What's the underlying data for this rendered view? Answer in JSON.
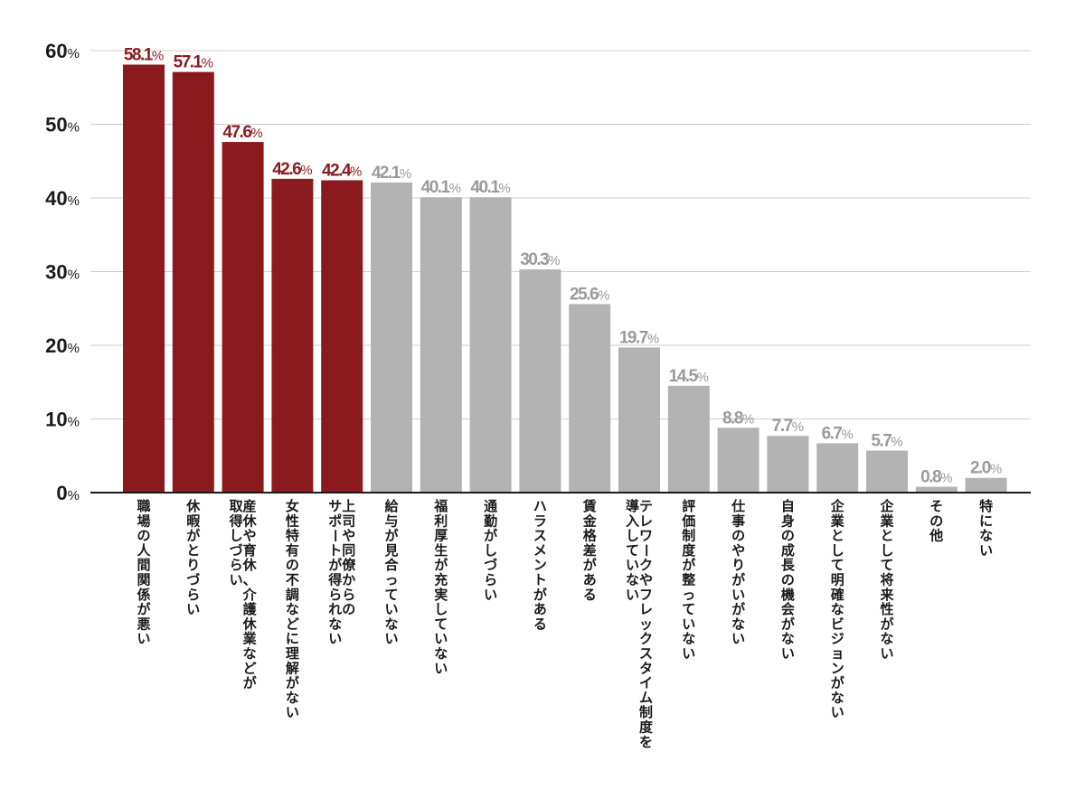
{
  "chart_data": {
    "type": "bar",
    "title": "",
    "xlabel": "",
    "ylabel": "",
    "ylim": [
      0,
      60
    ],
    "y_ticks": [
      "0%",
      "10%",
      "20%",
      "30%",
      "40%",
      "50%",
      "60%"
    ],
    "y_tick_values": [
      0,
      10,
      20,
      30,
      40,
      50,
      60
    ],
    "grid": true,
    "legend": "none",
    "colors": {
      "highlight": "#8b1a1f",
      "normal": "#b3b3b3",
      "axis": "#1a1a1a",
      "grid": "#cfcfcf"
    },
    "highlight_count": 5,
    "categories": [
      "職場の人間関係が悪い",
      "休暇がとりづらい",
      "産休や育休、介護休業などが取得しづらい",
      "女性特有の不調などに理解がない",
      "上司や同僚からのサポートが得られない",
      "給与が見合っていない",
      "福利厚生が充実していない",
      "通勤がしづらい",
      "ハラスメントがある",
      "賃金格差がある",
      "テレワークやフレックスタイム制度を導入していない",
      "評価制度が整っていない",
      "仕事のやりがいがない",
      "自身の成長の機会がない",
      "企業として明確なビジョンがない",
      "企業として将来性がない",
      "その他",
      "特にない"
    ],
    "category_lines": [
      [
        "職場の人間関係が悪い"
      ],
      [
        "休暇がとりづらい"
      ],
      [
        "産休や育休、介護休業などが",
        "取得しづらい"
      ],
      [
        "女性特有の不調などに理解がない"
      ],
      [
        "上司や同僚からの",
        "サポートが得られない"
      ],
      [
        "給与が見合っていない"
      ],
      [
        "福利厚生が充実していない"
      ],
      [
        "通勤がしづらい"
      ],
      [
        "ハラスメントがある"
      ],
      [
        "賃金格差がある"
      ],
      [
        "テレワークやフレックスタイム制度を",
        "導入していない"
      ],
      [
        "評価制度が整っていない"
      ],
      [
        "仕事のやりがいがない"
      ],
      [
        "自身の成長の機会がない"
      ],
      [
        "企業として明確なビジョンがない"
      ],
      [
        "企業として将来性がない"
      ],
      [
        "その他"
      ],
      [
        "特にない"
      ]
    ],
    "values": [
      58.1,
      57.1,
      47.6,
      42.6,
      42.4,
      42.1,
      40.1,
      40.1,
      30.3,
      25.6,
      19.7,
      14.5,
      8.8,
      7.7,
      6.7,
      5.7,
      0.8,
      2.0
    ],
    "value_labels": [
      "58.1",
      "57.1",
      "47.6",
      "42.6",
      "42.4",
      "42.1",
      "40.1",
      "40.1",
      "30.3",
      "25.6",
      "19.7",
      "14.5",
      "8.8",
      "7.7",
      "6.7",
      "5.7",
      "0.8",
      "2.0"
    ],
    "value_suffix": "%"
  }
}
